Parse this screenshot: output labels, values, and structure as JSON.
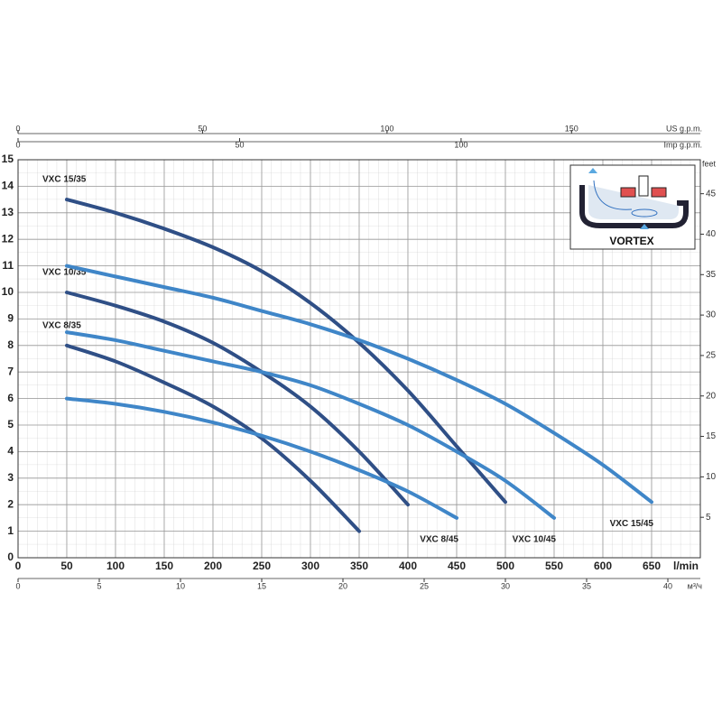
{
  "chart_data": {
    "type": "line",
    "x_label": "l/min",
    "y2_label": "feet",
    "xlim": [
      0,
      700
    ],
    "xticks": [
      0,
      50,
      100,
      150,
      200,
      250,
      300,
      350,
      400,
      450,
      500,
      550,
      600,
      650
    ],
    "ylim": [
      0,
      15
    ],
    "yticks": [
      0,
      1,
      2,
      3,
      4,
      5,
      6,
      7,
      8,
      9,
      10,
      11,
      12,
      13,
      14,
      15
    ],
    "y2lim": [
      0,
      49.2
    ],
    "y2ticks": [
      5,
      10,
      15,
      20,
      25,
      30,
      35,
      40,
      45
    ],
    "extra_axes": [
      {
        "label": "US g.p.m.",
        "lim": [
          0,
          184.9
        ],
        "ticks": [
          0,
          50,
          100,
          150
        ],
        "side": "top"
      },
      {
        "label": "Imp g.p.m.",
        "lim": [
          0,
          154
        ],
        "ticks": [
          0,
          50,
          100
        ],
        "side": "top"
      },
      {
        "label": "м³/ч",
        "lim": [
          0,
          42
        ],
        "ticks": [
          0,
          5,
          10,
          15,
          20,
          25,
          30,
          35,
          40
        ],
        "side": "bottom"
      }
    ],
    "grid": true,
    "inset_label": "VORTEX",
    "x": [
      50,
      100,
      150,
      200,
      250,
      300,
      350,
      400,
      450,
      500,
      550,
      600,
      650
    ],
    "series": [
      {
        "name": "VXC 15/35",
        "color": "#2f4f86",
        "values": [
          13.5,
          13.0,
          12.4,
          11.7,
          10.8,
          9.6,
          8.1,
          6.3,
          4.2,
          2.1,
          null,
          null,
          null
        ]
      },
      {
        "name": "VXC 10/35",
        "color": "#2f4f86",
        "values": [
          10.0,
          9.5,
          8.9,
          8.1,
          7.0,
          5.7,
          4.0,
          2.0,
          null,
          null,
          null,
          null,
          null
        ]
      },
      {
        "name": "VXC 8/35",
        "color": "#2f4f86",
        "values": [
          8.0,
          7.4,
          6.6,
          5.7,
          4.5,
          2.9,
          1.0,
          null,
          null,
          null,
          null,
          null,
          null
        ]
      },
      {
        "name": "VXC 8/45",
        "color": "#3f86c8",
        "values": [
          6.0,
          5.8,
          5.5,
          5.1,
          4.6,
          4.0,
          3.3,
          2.5,
          1.5,
          null,
          null,
          null,
          null
        ]
      },
      {
        "name": "VXC 10/45",
        "color": "#3f86c8",
        "values": [
          8.5,
          8.2,
          7.8,
          7.4,
          7.0,
          6.5,
          5.8,
          5.0,
          4.0,
          2.9,
          1.5,
          null,
          null
        ]
      },
      {
        "name": "VXC 15/45",
        "color": "#3f86c8",
        "values": [
          11.0,
          10.6,
          10.2,
          9.8,
          9.3,
          8.8,
          8.2,
          7.5,
          6.7,
          5.8,
          4.7,
          3.5,
          2.1
        ]
      }
    ]
  }
}
